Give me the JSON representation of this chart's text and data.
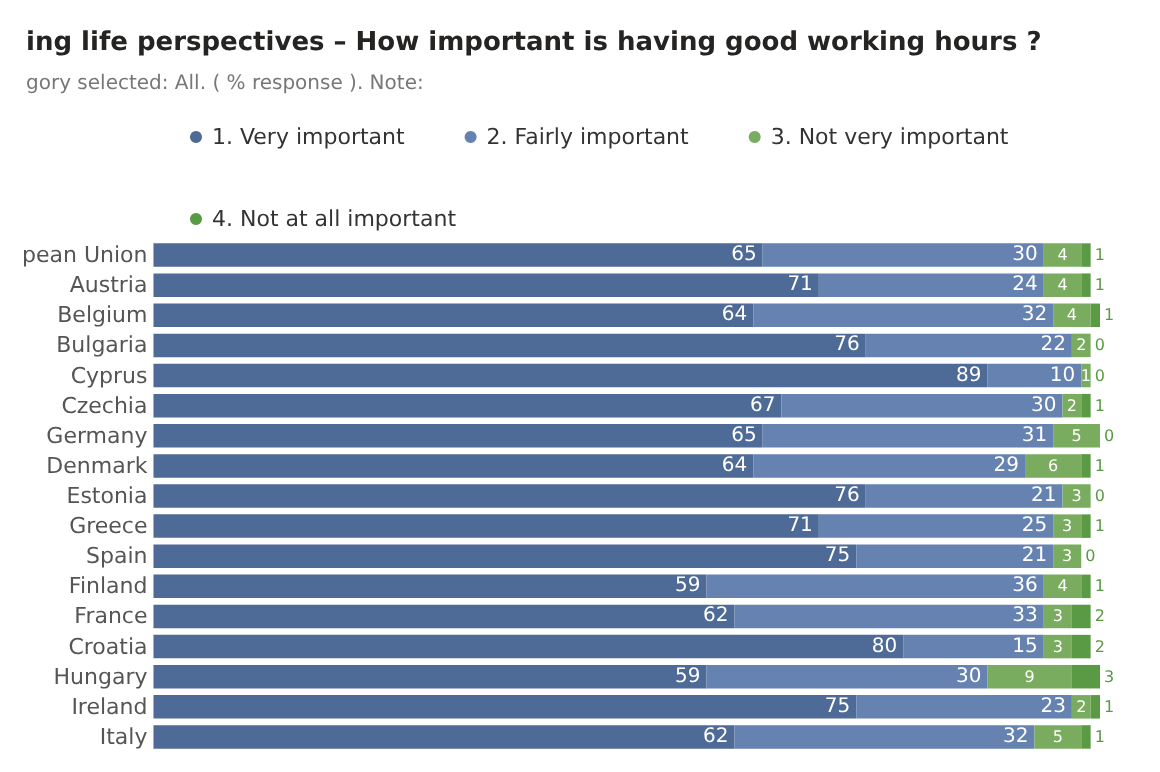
{
  "chart_data": {
    "type": "bar",
    "orientation": "horizontal",
    "stacked": true,
    "data_labels": true,
    "legend": "top",
    "title": "ing life perspectives – How important is having good working hours ?",
    "subtitle": "gory selected: All. ( % response ). Note:",
    "categories": [
      "pean Union",
      "Austria",
      "Belgium",
      "Bulgaria",
      "Cyprus",
      "Czechia",
      "Germany",
      "Denmark",
      "Estonia",
      "Greece",
      "Spain",
      "Finland",
      "France",
      "Croatia",
      "Hungary",
      "Ireland",
      "Italy"
    ],
    "series": [
      {
        "name": "1. Very important",
        "color": "#4e6a96",
        "values": [
          65,
          71,
          64,
          76,
          89,
          67,
          65,
          64,
          76,
          71,
          75,
          59,
          62,
          80,
          59,
          75,
          62
        ]
      },
      {
        "name": "2. Fairly important",
        "color": "#6582b0",
        "values": [
          30,
          24,
          32,
          22,
          10,
          30,
          31,
          29,
          21,
          25,
          21,
          36,
          33,
          15,
          30,
          23,
          32
        ]
      },
      {
        "name": "3. Not very important",
        "color": "#7aac60",
        "values": [
          4,
          4,
          4,
          2,
          1,
          2,
          5,
          6,
          3,
          3,
          3,
          4,
          3,
          3,
          9,
          2,
          5
        ]
      },
      {
        "name": "4. Not at all important",
        "color": "#5a9a45",
        "values": [
          1,
          1,
          1,
          0,
          0,
          1,
          0,
          1,
          0,
          1,
          0,
          1,
          2,
          2,
          3,
          1,
          1
        ]
      }
    ]
  }
}
